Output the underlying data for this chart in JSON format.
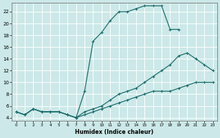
{
  "xlabel": "Humidex (Indice chaleur)",
  "bg_color": "#cce8e8",
  "grid_color": "#ffffff",
  "line_color": "#1a6b6b",
  "xlim": [
    -0.5,
    23.5
  ],
  "ylim": [
    3.5,
    23.5
  ],
  "xticks": [
    0,
    1,
    2,
    3,
    4,
    5,
    6,
    7,
    8,
    9,
    10,
    11,
    12,
    13,
    14,
    15,
    16,
    17,
    18,
    19,
    20,
    21,
    22,
    23
  ],
  "yticks": [
    4,
    6,
    8,
    10,
    12,
    14,
    16,
    18,
    20,
    22
  ],
  "line1_x": [
    0,
    1,
    2,
    3,
    4,
    5,
    6,
    7,
    8,
    9,
    10,
    11,
    12,
    13,
    14,
    15,
    16,
    17,
    18,
    19
  ],
  "line1_y": [
    5,
    4.5,
    5.5,
    5,
    5,
    5,
    4.5,
    4,
    8.5,
    17,
    18.5,
    20.5,
    22,
    22,
    22.5,
    23,
    23,
    23,
    19,
    19
  ],
  "line2_x": [
    0,
    1,
    2,
    3,
    4,
    5,
    6,
    7,
    8,
    9,
    10,
    11,
    12,
    13,
    14,
    15,
    16,
    17,
    18,
    19,
    20,
    21,
    22,
    23
  ],
  "line2_y": [
    5,
    4.5,
    5.5,
    5,
    5,
    5,
    4.5,
    4,
    5,
    5.5,
    6,
    7,
    8,
    8.5,
    9,
    10,
    11,
    12,
    13,
    14.5,
    15,
    14,
    13,
    12
  ],
  "line3_x": [
    0,
    1,
    2,
    3,
    4,
    5,
    6,
    7,
    8,
    9,
    10,
    11,
    12,
    13,
    14,
    15,
    16,
    17,
    18,
    19,
    20,
    21,
    22,
    23
  ],
  "line3_y": [
    5,
    4.5,
    5.5,
    5,
    5,
    5,
    4.5,
    4,
    4.5,
    5,
    5.5,
    6,
    6.5,
    7,
    7.5,
    8,
    8.5,
    8.5,
    8.5,
    9,
    9.5,
    10,
    10,
    10
  ]
}
